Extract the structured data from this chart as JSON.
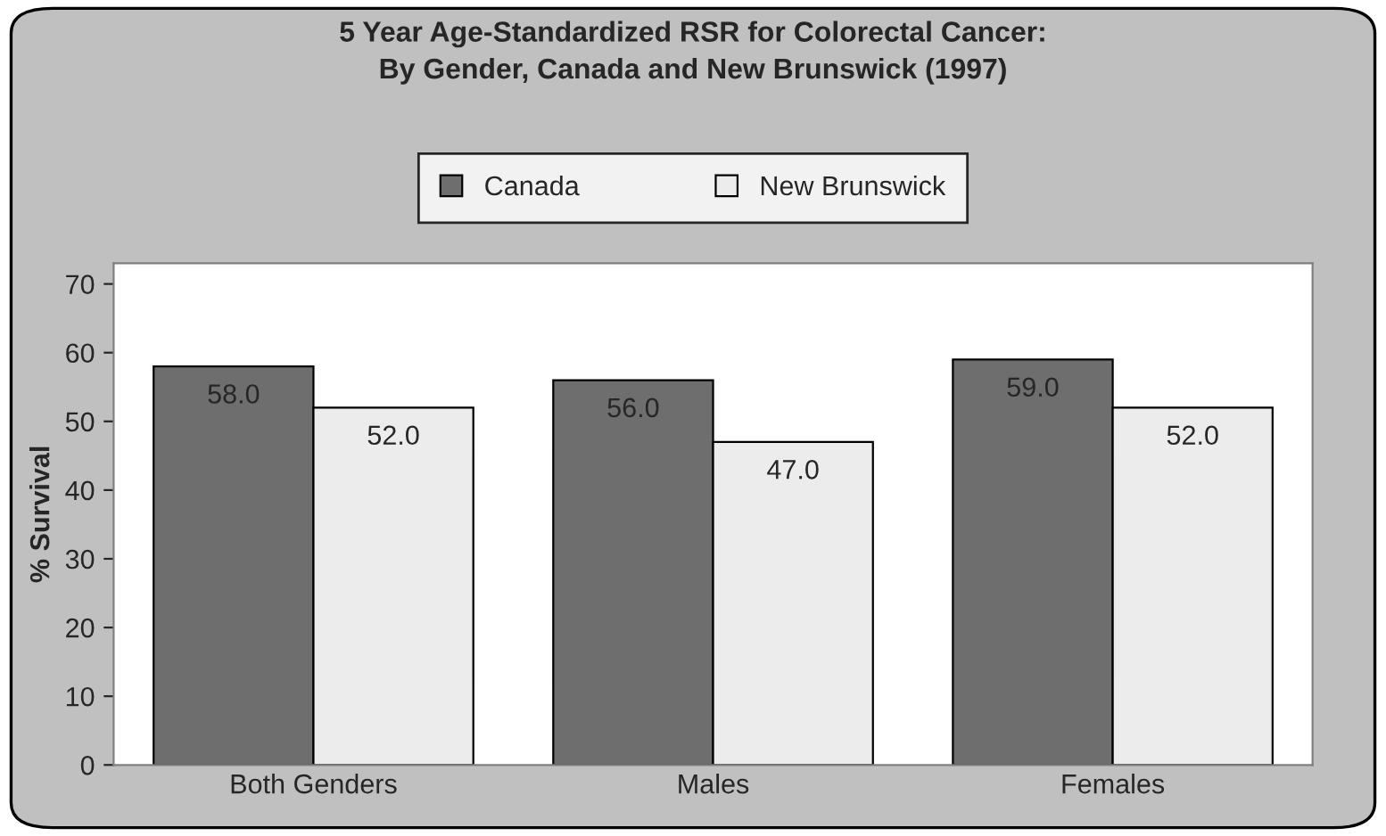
{
  "chart_data": {
    "type": "bar",
    "title": "5 Year Age-Standardized RSR for Colorectal Cancer:\nBy Gender, Canada and New Brunswick (1997)",
    "ylabel": "% Survival",
    "categories": [
      "Both Genders",
      "Males",
      "Females"
    ],
    "series": [
      {
        "name": "Canada",
        "color": "#6e6e6e",
        "values": [
          58.0,
          56.0,
          59.0
        ],
        "value_labels": [
          "58.0",
          "56.0",
          "59.0"
        ]
      },
      {
        "name": "New Brunswick",
        "color": "#ececec",
        "values": [
          52.0,
          47.0,
          52.0
        ],
        "value_labels": [
          "52.0",
          "47.0",
          "52.0"
        ]
      }
    ],
    "ylim": [
      0,
      73
    ],
    "yticks": [
      0,
      10,
      20,
      30,
      40,
      50,
      60,
      70
    ],
    "legend": "top"
  }
}
